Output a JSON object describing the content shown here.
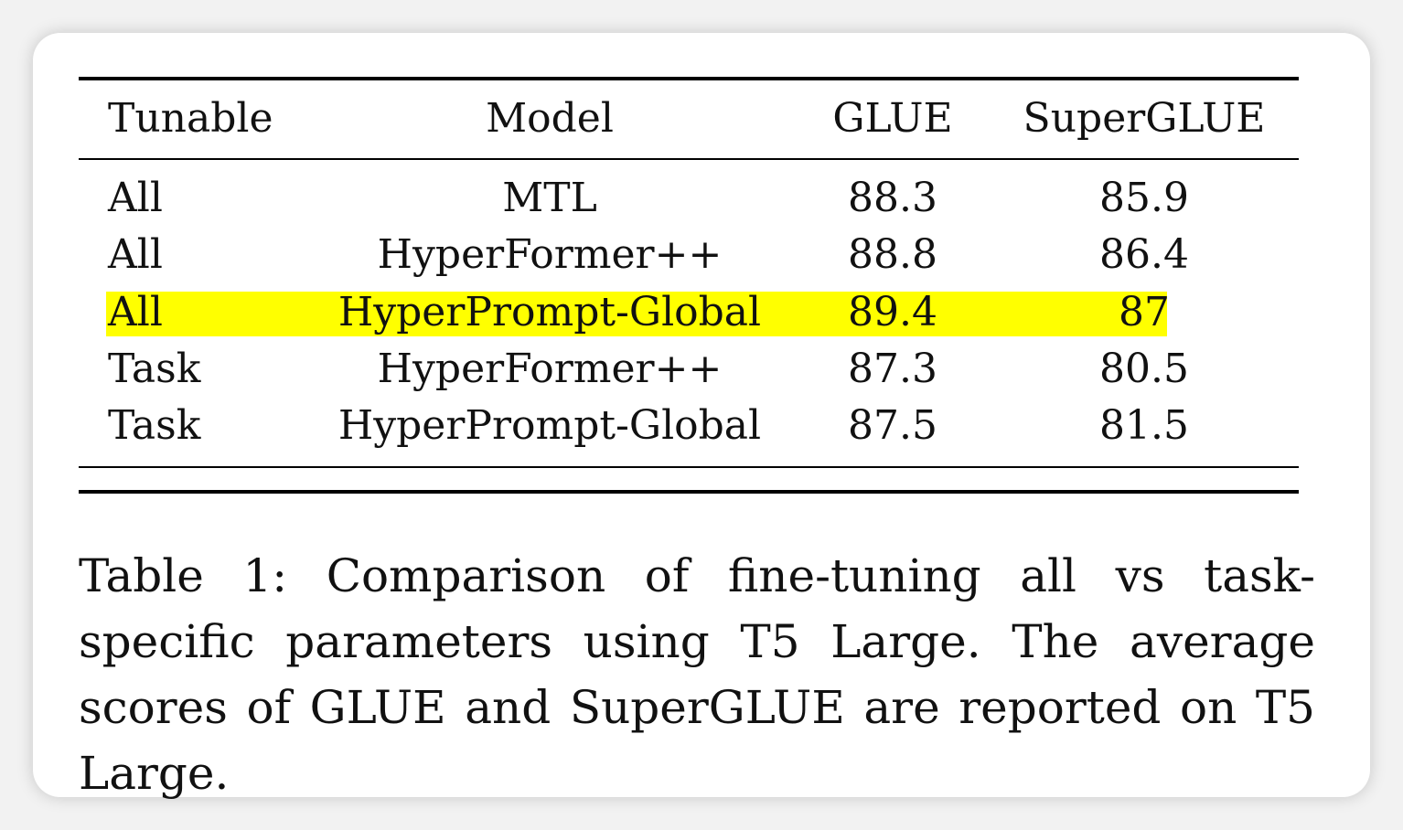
{
  "table": {
    "headers": {
      "tunable": "Tunable",
      "model": "Model",
      "glue": "GLUE",
      "superglue": "SuperGLUE"
    },
    "rows": [
      {
        "tunable": "All",
        "model": "MTL",
        "glue": "88.3",
        "superglue": "85.9",
        "highlighted": false
      },
      {
        "tunable": "All",
        "model": "HyperFormer++",
        "glue": "88.8",
        "superglue": "86.4",
        "highlighted": false
      },
      {
        "tunable": "All",
        "model": "HyperPrompt-Global",
        "glue": "89.4",
        "superglue": "87",
        "highlighted": true
      },
      {
        "tunable": "Task",
        "model": "HyperFormer++",
        "glue": "87.3",
        "superglue": "80.5",
        "highlighted": false
      },
      {
        "tunable": "Task",
        "model": "HyperPrompt-Global",
        "glue": "87.5",
        "superglue": "81.5",
        "highlighted": false
      }
    ],
    "highlight_color": "#ffff00"
  },
  "caption": {
    "text": "Table 1: Comparison of fine-tuning all vs task-specific parameters using T5 Large. The average scores of GLUE and SuperGLUE are reported on T5 Large."
  }
}
